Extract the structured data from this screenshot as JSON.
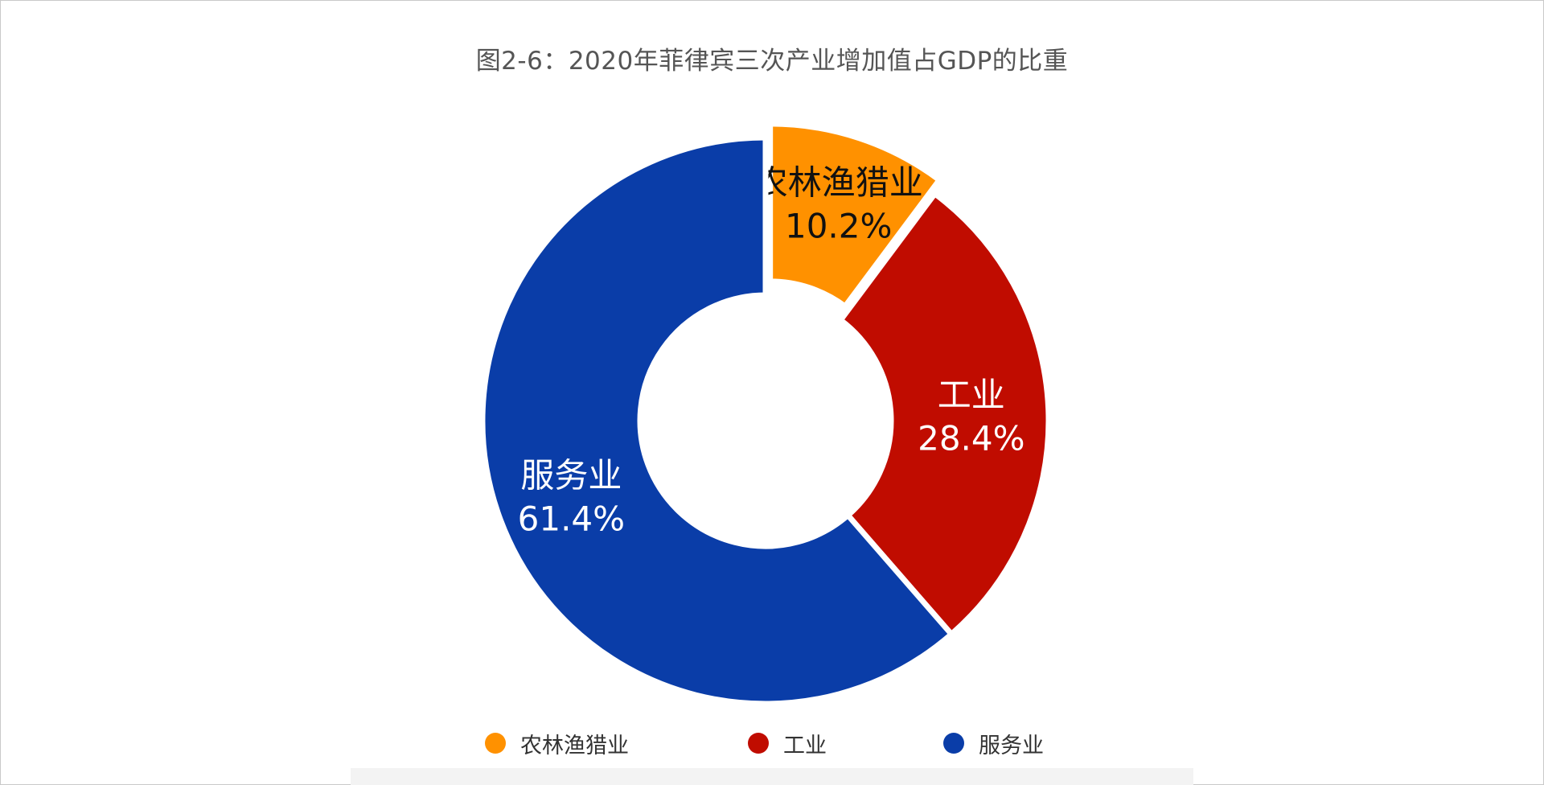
{
  "chart_data": {
    "type": "pie",
    "variant": "donut",
    "title": "图2-6：2020年菲律宾三次产业增加值占GDP的比重",
    "unit": "%",
    "slices": [
      {
        "name": "农林渔猎业",
        "value": 10.2,
        "label": "10.2%",
        "color": "#FF9100",
        "label_color": "#111111",
        "exploded": true
      },
      {
        "name": "工业",
        "value": 28.4,
        "label": "28.4%",
        "color": "#C00C00",
        "label_color": "#ffffff",
        "exploded": false
      },
      {
        "name": "服务业",
        "value": 61.4,
        "label": "61.4%",
        "color": "#0A3DA8",
        "label_color": "#ffffff",
        "exploded": false
      }
    ],
    "legend": {
      "placement": "bottom"
    }
  }
}
